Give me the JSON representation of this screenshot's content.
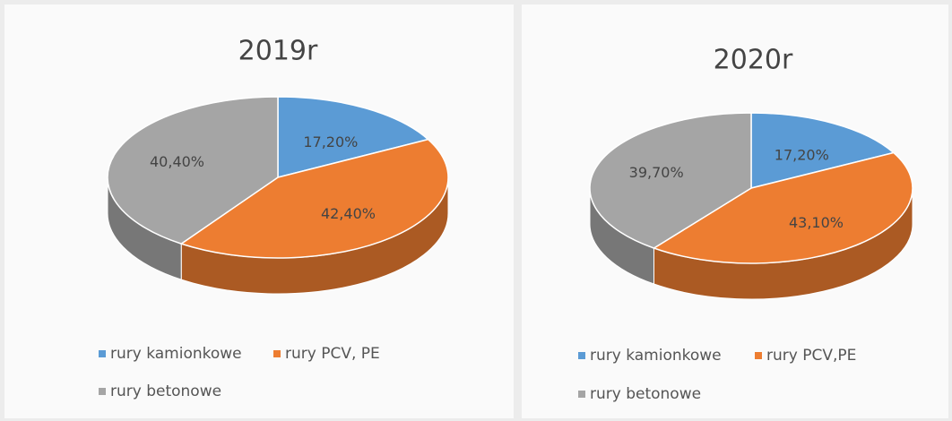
{
  "chart_data": [
    {
      "type": "pie",
      "title": "2019r",
      "categories": [
        "rury kamionkowe",
        "rury PCV, PE",
        "rury betonowe"
      ],
      "values": [
        17.2,
        42.4,
        40.4
      ],
      "value_labels": [
        "17,20%",
        "42,40%",
        "40,40%"
      ],
      "colors": [
        "#5b9bd5",
        "#ed7d31",
        "#a5a5a5"
      ]
    },
    {
      "type": "pie",
      "title": "2020r",
      "categories": [
        "rury kamionkowe",
        "rury PCV,PE",
        "rury betonowe"
      ],
      "values": [
        17.2,
        43.1,
        39.7
      ],
      "value_labels": [
        "17,20%",
        "43,10%",
        "39,70%"
      ],
      "colors": [
        "#5b9bd5",
        "#ed7d31",
        "#a5a5a5"
      ]
    }
  ]
}
